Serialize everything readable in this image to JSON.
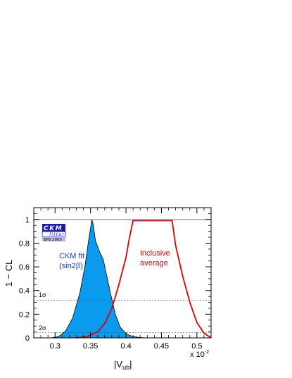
{
  "chart_data": {
    "type": "area",
    "xlabel": "|V",
    "xlabel_sub": "ub",
    "xlabel_tail": "|",
    "ylabel": "1 − CL",
    "x_multiplier": "x 10",
    "x_multiplier_exp": "-2",
    "xlim": [
      0.27,
      0.52
    ],
    "ylim": [
      0,
      1.1
    ],
    "x_ticks": [
      0.3,
      0.35,
      0.4,
      0.45,
      0.5
    ],
    "x_tick_labels": [
      "0.3",
      "0.35",
      "0.4",
      "0.45",
      "0.5"
    ],
    "y_ticks": [
      0,
      0.2,
      0.4,
      0.6,
      0.8,
      1
    ],
    "y_tick_labels": [
      "0",
      "0.2",
      "0.4",
      "0.6",
      "0.8",
      "1"
    ],
    "reference_lines": [
      {
        "label": "1σ",
        "y": 0.317
      },
      {
        "label": "2σ",
        "y": 0.046
      }
    ],
    "top_line": {
      "y": 1.0,
      "color": "#8080ff"
    },
    "series": [
      {
        "name": "CKM fit (sin2β)",
        "name_line1": "CKM fit",
        "name_line2": "(sin2β)",
        "fill": "#0a9bef",
        "x": [
          0.295,
          0.305,
          0.315,
          0.325,
          0.335,
          0.342,
          0.348,
          0.352,
          0.354,
          0.357,
          0.362,
          0.368,
          0.372,
          0.378,
          0.385,
          0.392,
          0.4,
          0.41,
          0.42,
          0.43
        ],
        "y": [
          0.0,
          0.012,
          0.06,
          0.17,
          0.38,
          0.6,
          0.85,
          1.0,
          0.95,
          0.82,
          0.74,
          0.66,
          0.55,
          0.38,
          0.2,
          0.09,
          0.035,
          0.01,
          0.003,
          0.0
        ]
      },
      {
        "name": "Inclusive average",
        "name_line1": "Inclusive",
        "name_line2": "average",
        "color": "#e00000",
        "x": [
          0.33,
          0.345,
          0.36,
          0.37,
          0.38,
          0.39,
          0.4,
          0.405,
          0.41,
          0.465,
          0.47,
          0.48,
          0.49,
          0.5,
          0.51,
          0.52
        ],
        "y": [
          0.0,
          0.01,
          0.05,
          0.12,
          0.25,
          0.45,
          0.68,
          0.85,
          0.99,
          0.99,
          0.78,
          0.52,
          0.3,
          0.13,
          0.04,
          0.0
        ]
      }
    ]
  },
  "logo": {
    "line1": "CKM",
    "line2": "fitter",
    "line3": "EPS 2005"
  }
}
